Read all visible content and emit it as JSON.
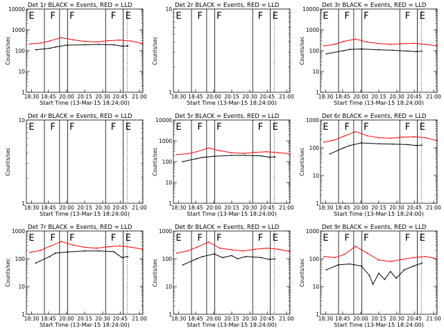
{
  "time_axis": {
    "ticks": [
      "18:30",
      "18:45",
      "20:00",
      "20:15",
      "20:30",
      "20:45",
      "21:00"
    ],
    "xlabel": "Start Time (13-Mar-15 18:24:00)"
  },
  "ylabel": "Counts/sec",
  "colors": {
    "events": "#000000",
    "lld": "#ff0000",
    "markers": "#000000"
  },
  "chart_data": [
    {
      "type": "line",
      "title": "Det 1r  BLACK = Events, RED = LLD",
      "ylim": [
        1,
        10000
      ],
      "yscale": "log",
      "yticks": [
        "1",
        "10",
        "100",
        "1000",
        "10000"
      ],
      "flags": [
        "E",
        "F",
        "F",
        "F",
        "E"
      ],
      "series": [
        {
          "name": "Events",
          "color": "#000000",
          "x": [
            0.08,
            0.2,
            0.25,
            0.35,
            0.5,
            0.62,
            0.75,
            0.82,
            0.87
          ],
          "values": [
            110,
            130,
            150,
            185,
            190,
            200,
            190,
            165,
            170
          ]
        },
        {
          "name": "LLD",
          "color": "#ff0000",
          "x": [
            0.03,
            0.12,
            0.2,
            0.3,
            0.4,
            0.5,
            0.6,
            0.7,
            0.8,
            0.9,
            1.0
          ],
          "values": [
            210,
            230,
            290,
            420,
            330,
            280,
            260,
            300,
            320,
            290,
            215
          ]
        }
      ]
    },
    {
      "type": "line",
      "title": "Det 2r  BLACK = Events, RED = LLD",
      "ylim": [
        1,
        10
      ],
      "yscale": "log",
      "yticks": [
        "1",
        "10"
      ],
      "flags": [
        "E",
        "F",
        "F",
        "F",
        "E"
      ],
      "series": []
    },
    {
      "type": "line",
      "title": "Det 3r  BLACK = Events, RED = LLD",
      "ylim": [
        1,
        10000
      ],
      "yscale": "log",
      "yticks": [
        "1",
        "10",
        "100",
        "1000",
        "10000"
      ],
      "flags": [
        "E",
        "F",
        "F",
        "F",
        "E"
      ],
      "series": [
        {
          "name": "Events",
          "color": "#000000",
          "x": [
            0.05,
            0.2,
            0.25,
            0.35,
            0.5,
            0.62,
            0.75,
            0.82,
            0.87
          ],
          "values": [
            70,
            100,
            115,
            120,
            110,
            105,
            95,
            90,
            95
          ]
        },
        {
          "name": "LLD",
          "color": "#ff0000",
          "x": [
            0.03,
            0.12,
            0.2,
            0.3,
            0.4,
            0.5,
            0.6,
            0.7,
            0.8,
            0.9,
            1.0
          ],
          "values": [
            170,
            200,
            280,
            360,
            260,
            220,
            200,
            215,
            225,
            200,
            170
          ]
        }
      ]
    },
    {
      "type": "line",
      "title": "Det 4r  BLACK = Events, RED = LLD",
      "ylim": [
        1,
        10
      ],
      "yscale": "log",
      "yticks": [
        "1",
        "10"
      ],
      "flags": [
        "E",
        "F",
        "F",
        "F",
        "E"
      ],
      "series": []
    },
    {
      "type": "line",
      "title": "Det 5r  BLACK = Events, RED = LLD",
      "ylim": [
        1,
        10000
      ],
      "yscale": "log",
      "yticks": [
        "1",
        "10",
        "100",
        "1000",
        "10000"
      ],
      "flags": [
        "E",
        "F",
        "F",
        "F",
        "E"
      ],
      "series": [
        {
          "name": "Events",
          "color": "#000000",
          "x": [
            0.08,
            0.2,
            0.25,
            0.35,
            0.5,
            0.62,
            0.75,
            0.82,
            0.87
          ],
          "values": [
            100,
            140,
            160,
            180,
            200,
            200,
            190,
            165,
            170
          ]
        },
        {
          "name": "LLD",
          "color": "#ff0000",
          "x": [
            0.03,
            0.12,
            0.2,
            0.3,
            0.4,
            0.5,
            0.6,
            0.7,
            0.8,
            0.9,
            1.0
          ],
          "values": [
            220,
            240,
            300,
            450,
            330,
            270,
            250,
            280,
            300,
            270,
            240
          ]
        }
      ]
    },
    {
      "type": "line",
      "title": "Det 6r  BLACK = Events, RED = LLD",
      "ylim": [
        1,
        1000
      ],
      "yscale": "log",
      "yticks": [
        "1",
        "10",
        "100",
        "1000"
      ],
      "flags": [
        "E",
        "F",
        "F",
        "F",
        "E"
      ],
      "series": [
        {
          "name": "Events",
          "color": "#000000",
          "x": [
            0.08,
            0.2,
            0.25,
            0.35,
            0.5,
            0.62,
            0.75,
            0.82,
            0.87
          ],
          "values": [
            60,
            100,
            120,
            150,
            140,
            135,
            130,
            120,
            125
          ]
        },
        {
          "name": "LLD",
          "color": "#ff0000",
          "x": [
            0.03,
            0.12,
            0.2,
            0.3,
            0.4,
            0.5,
            0.6,
            0.7,
            0.8,
            0.9,
            1.0
          ],
          "values": [
            160,
            190,
            260,
            380,
            270,
            230,
            220,
            240,
            250,
            230,
            180
          ]
        }
      ]
    },
    {
      "type": "line",
      "title": "Det 7r  BLACK = Events, RED = LLD",
      "ylim": [
        1,
        1000
      ],
      "yscale": "log",
      "yticks": [
        "1",
        "10",
        "100",
        "1000"
      ],
      "flags": [
        "E",
        "F",
        "F",
        "F",
        "E"
      ],
      "series": [
        {
          "name": "Events",
          "color": "#000000",
          "x": [
            0.08,
            0.2,
            0.25,
            0.35,
            0.5,
            0.62,
            0.75,
            0.82,
            0.87
          ],
          "values": [
            70,
            120,
            160,
            175,
            190,
            190,
            180,
            110,
            120
          ]
        },
        {
          "name": "LLD",
          "color": "#ff0000",
          "x": [
            0.03,
            0.12,
            0.2,
            0.3,
            0.4,
            0.5,
            0.6,
            0.7,
            0.8,
            0.9,
            1.0
          ],
          "values": [
            170,
            200,
            280,
            420,
            310,
            260,
            240,
            270,
            290,
            260,
            220
          ]
        }
      ]
    },
    {
      "type": "line",
      "title": "Det 8r  BLACK = Events, RED = LLD",
      "ylim": [
        1,
        1000
      ],
      "yscale": "log",
      "yticks": [
        "1",
        "10",
        "100",
        "1000"
      ],
      "flags": [
        "E",
        "F",
        "F",
        "F",
        "E"
      ],
      "series": [
        {
          "name": "Events",
          "color": "#000000",
          "x": [
            0.08,
            0.2,
            0.25,
            0.35,
            0.42,
            0.5,
            0.55,
            0.62,
            0.75,
            0.82,
            0.87
          ],
          "values": [
            60,
            100,
            120,
            150,
            110,
            130,
            100,
            120,
            110,
            95,
            100
          ]
        },
        {
          "name": "LLD",
          "color": "#ff0000",
          "x": [
            0.03,
            0.12,
            0.2,
            0.3,
            0.4,
            0.5,
            0.6,
            0.7,
            0.8,
            0.9,
            1.0
          ],
          "values": [
            160,
            190,
            260,
            400,
            240,
            210,
            190,
            220,
            240,
            220,
            180
          ]
        }
      ]
    },
    {
      "type": "line",
      "title": "Det 9r  BLACK = Events, RED = LLD",
      "ylim": [
        1,
        1000
      ],
      "yscale": "log",
      "yticks": [
        "1",
        "10",
        "100",
        "1000"
      ],
      "flags": [
        "E",
        "F",
        "F",
        "F",
        "E"
      ],
      "series": [
        {
          "name": "Events",
          "color": "#000000",
          "x": [
            0.05,
            0.15,
            0.25,
            0.35,
            0.42,
            0.45,
            0.5,
            0.55,
            0.6,
            0.65,
            0.72,
            0.8,
            0.87
          ],
          "values": [
            40,
            60,
            65,
            55,
            25,
            12,
            30,
            18,
            35,
            20,
            40,
            55,
            70
          ]
        },
        {
          "name": "LLD",
          "color": "#ff0000",
          "x": [
            0.03,
            0.12,
            0.2,
            0.3,
            0.4,
            0.5,
            0.6,
            0.7,
            0.8,
            0.9,
            1.0
          ],
          "values": [
            120,
            110,
            140,
            280,
            160,
            90,
            80,
            95,
            110,
            120,
            100
          ]
        }
      ]
    }
  ]
}
